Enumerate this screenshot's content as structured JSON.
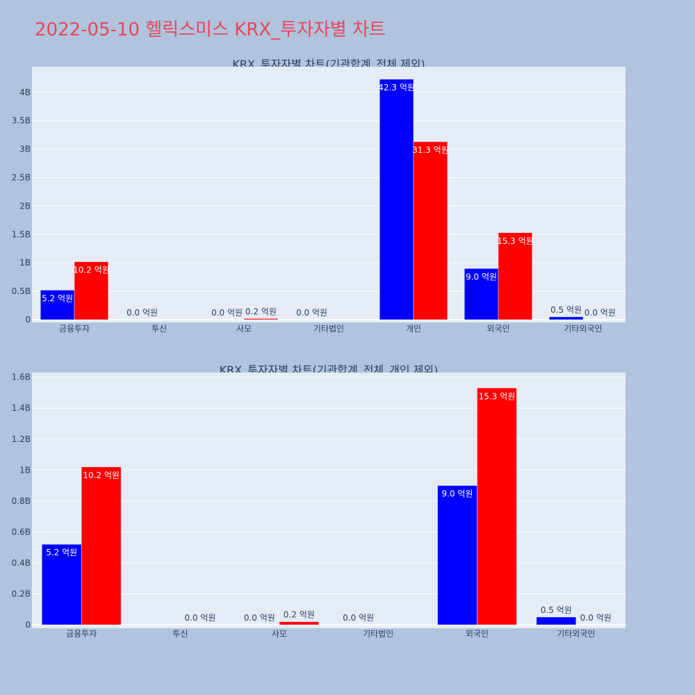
{
  "page": {
    "title": "2022-05-10 헬릭스미스 KRX_투자자별 차트"
  },
  "colors": {
    "background": "#b0c4de",
    "plot_bg": "#e5ecf6",
    "series_blue": "#0000ff",
    "series_red": "#ff0000",
    "title_color": "#e8465a"
  },
  "chart_data": [
    {
      "type": "bar",
      "title": "KRX_투자자별 차트(기관합계_전체 제외)",
      "categories": [
        "금융투자",
        "투신",
        "사모",
        "기타법인",
        "개인",
        "외국인",
        "기타외국인"
      ],
      "series": [
        {
          "values": [
            520000000,
            0,
            0,
            0,
            4230000000,
            900000000,
            50000000
          ],
          "labels": [
            "5.2 억원",
            "0.0 억원",
            "0.0 억원",
            "0.0 억원",
            "42.3 억원",
            "9.0 억원",
            "0.5 억원"
          ]
        },
        {
          "values": [
            1020000000,
            0,
            20000000,
            0,
            3130000000,
            1530000000,
            0
          ],
          "labels": [
            "10.2 억원",
            "",
            "0.2 억원",
            "",
            "31.3 억원",
            "15.3 억원",
            "0.0 억원"
          ]
        }
      ],
      "ylim": [
        0,
        4450000000
      ],
      "yticks": [
        0,
        500000000,
        1000000000,
        1500000000,
        2000000000,
        2500000000,
        3000000000,
        3500000000,
        4000000000
      ],
      "yticklabels": [
        "0",
        "0.5B",
        "1B",
        "1.5B",
        "2B",
        "2.5B",
        "3B",
        "3.5B",
        "4B"
      ],
      "grid": true
    },
    {
      "type": "bar",
      "title": "KRX_투자자별 차트(기관합계_전체_개인 제외)",
      "categories": [
        "금융투자",
        "투신",
        "사모",
        "기타법인",
        "외국인",
        "기타외국인"
      ],
      "series": [
        {
          "values": [
            520000000,
            0,
            0,
            0,
            900000000,
            50000000
          ],
          "labels": [
            "5.2 억원",
            "",
            "0.0 억원",
            "0.0 억원",
            "9.0 억원",
            "0.5 억원"
          ]
        },
        {
          "values": [
            1020000000,
            0,
            20000000,
            0,
            1530000000,
            0
          ],
          "labels": [
            "10.2 억원",
            "0.0 억원",
            "0.2 억원",
            "",
            "15.3 억원",
            "0.0 억원"
          ]
        }
      ],
      "ylim": [
        0,
        1630000000
      ],
      "yticks": [
        0,
        200000000,
        400000000,
        600000000,
        800000000,
        1000000000,
        1200000000,
        1400000000,
        1600000000
      ],
      "yticklabels": [
        "0",
        "0.2B",
        "0.4B",
        "0.6B",
        "0.8B",
        "1B",
        "1.2B",
        "1.4B",
        "1.6B"
      ],
      "grid": true
    }
  ]
}
